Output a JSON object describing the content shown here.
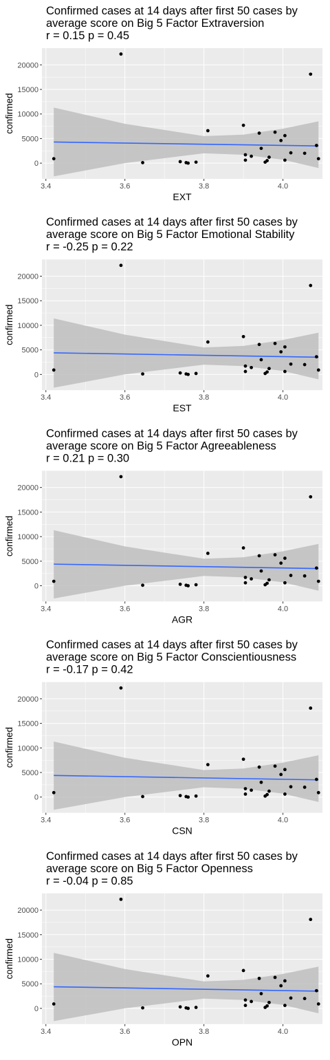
{
  "chart_data": [
    {
      "type": "scatter",
      "title_lines": [
        "Confirmed cases at 14 days after first 50 cases by",
        "average score on Big 5 Factor Extraversion",
        "r = 0.15 p = 0.45"
      ],
      "xlabel": "EXT",
      "ylabel": "confirmed",
      "xlim": [
        3.39,
        4.1
      ],
      "ylim": [
        -3200,
        23400
      ],
      "xticks": [
        3.4,
        3.6,
        3.8,
        4.0
      ],
      "xtick_labels": [
        "3.4",
        "3.6",
        "3.8",
        "4.0"
      ],
      "yticks": [
        0,
        5000,
        10000,
        15000,
        20000
      ],
      "ytick_labels": [
        "0",
        "5000",
        "10000",
        "15000",
        "20000"
      ],
      "grid": true,
      "points": [
        {
          "x": 3.42,
          "y": 900
        },
        {
          "x": 3.59,
          "y": 22200
        },
        {
          "x": 3.645,
          "y": 100
        },
        {
          "x": 3.74,
          "y": 300
        },
        {
          "x": 3.755,
          "y": 100
        },
        {
          "x": 3.76,
          "y": 0
        },
        {
          "x": 3.78,
          "y": 200
        },
        {
          "x": 3.81,
          "y": 6600
        },
        {
          "x": 3.9,
          "y": 7700
        },
        {
          "x": 3.905,
          "y": 1700
        },
        {
          "x": 3.905,
          "y": 600
        },
        {
          "x": 3.92,
          "y": 1400
        },
        {
          "x": 3.94,
          "y": 6100
        },
        {
          "x": 3.945,
          "y": 3000
        },
        {
          "x": 3.955,
          "y": 200
        },
        {
          "x": 3.96,
          "y": 500
        },
        {
          "x": 3.965,
          "y": 1200
        },
        {
          "x": 3.98,
          "y": 6300
        },
        {
          "x": 3.995,
          "y": 4600
        },
        {
          "x": 4.005,
          "y": 5600
        },
        {
          "x": 4.005,
          "y": 600
        },
        {
          "x": 4.02,
          "y": 2100
        },
        {
          "x": 4.055,
          "y": 2000
        },
        {
          "x": 4.07,
          "y": 18100
        },
        {
          "x": 4.085,
          "y": 3600
        },
        {
          "x": 4.09,
          "y": 900
        }
      ],
      "trend": {
        "x": [
          3.42,
          4.09
        ],
        "y": [
          4300,
          3500
        ]
      },
      "band": {
        "x": [
          3.42,
          3.6,
          3.8,
          3.9,
          4.0,
          4.09
        ],
        "upper": [
          11300,
          8000,
          5500,
          5800,
          7000,
          8500
        ],
        "lower": [
          -2700,
          0,
          2000,
          1700,
          700,
          -1000
        ]
      },
      "colors": {
        "trend": "#3366FF",
        "band": "#BEBEBE",
        "panel": "#EBEBEB",
        "points": "#000000"
      }
    },
    {
      "type": "scatter",
      "title_lines": [
        "Confirmed cases at 14 days after first 50 cases by",
        "average score on Big 5 Factor Emotional Stability",
        "r = -0.25 p = 0.22"
      ],
      "xlabel": "EST",
      "ylabel": "confirmed",
      "xlim": [
        3.39,
        4.1
      ],
      "ylim": [
        -3200,
        23400
      ],
      "xticks": [
        3.4,
        3.6,
        3.8,
        4.0
      ],
      "xtick_labels": [
        "3.4",
        "3.6",
        "3.8",
        "4.0"
      ],
      "yticks": [
        0,
        5000,
        10000,
        15000,
        20000
      ],
      "ytick_labels": [
        "0",
        "5000",
        "10000",
        "15000",
        "20000"
      ],
      "grid": true,
      "points": [
        {
          "x": 3.42,
          "y": 900
        },
        {
          "x": 3.59,
          "y": 22200
        },
        {
          "x": 3.645,
          "y": 100
        },
        {
          "x": 3.74,
          "y": 300
        },
        {
          "x": 3.755,
          "y": 100
        },
        {
          "x": 3.76,
          "y": 0
        },
        {
          "x": 3.78,
          "y": 200
        },
        {
          "x": 3.81,
          "y": 6600
        },
        {
          "x": 3.9,
          "y": 7700
        },
        {
          "x": 3.905,
          "y": 1700
        },
        {
          "x": 3.905,
          "y": 600
        },
        {
          "x": 3.92,
          "y": 1400
        },
        {
          "x": 3.94,
          "y": 6100
        },
        {
          "x": 3.945,
          "y": 3000
        },
        {
          "x": 3.955,
          "y": 200
        },
        {
          "x": 3.96,
          "y": 500
        },
        {
          "x": 3.965,
          "y": 1200
        },
        {
          "x": 3.98,
          "y": 6300
        },
        {
          "x": 3.995,
          "y": 4600
        },
        {
          "x": 4.005,
          "y": 5600
        },
        {
          "x": 4.005,
          "y": 600
        },
        {
          "x": 4.02,
          "y": 2100
        },
        {
          "x": 4.055,
          "y": 2000
        },
        {
          "x": 4.07,
          "y": 18100
        },
        {
          "x": 4.085,
          "y": 3600
        },
        {
          "x": 4.09,
          "y": 900
        }
      ],
      "trend": {
        "x": [
          3.42,
          4.09
        ],
        "y": [
          4400,
          3500
        ]
      },
      "band": {
        "x": [
          3.42,
          3.6,
          3.8,
          3.9,
          4.0,
          4.09
        ],
        "upper": [
          11400,
          8100,
          5500,
          5800,
          7000,
          8500
        ],
        "lower": [
          -2700,
          0,
          2000,
          1700,
          700,
          -1000
        ]
      },
      "colors": {
        "trend": "#3366FF",
        "band": "#BEBEBE",
        "panel": "#EBEBEB",
        "points": "#000000"
      }
    },
    {
      "type": "scatter",
      "title_lines": [
        "Confirmed cases at 14 days after first 50 cases by",
        "average score on Big 5 Factor Agreeableness",
        "r = 0.21 p = 0.30"
      ],
      "xlabel": "AGR",
      "ylabel": "confirmed",
      "xlim": [
        3.39,
        4.1
      ],
      "ylim": [
        -3200,
        23400
      ],
      "xticks": [
        3.4,
        3.6,
        3.8,
        4.0
      ],
      "xtick_labels": [
        "3.4",
        "3.6",
        "3.8",
        "4.0"
      ],
      "yticks": [
        0,
        5000,
        10000,
        15000,
        20000
      ],
      "ytick_labels": [
        "0",
        "5000",
        "10000",
        "15000",
        "20000"
      ],
      "grid": true,
      "points": [
        {
          "x": 3.42,
          "y": 900
        },
        {
          "x": 3.59,
          "y": 22200
        },
        {
          "x": 3.645,
          "y": 100
        },
        {
          "x": 3.74,
          "y": 300
        },
        {
          "x": 3.755,
          "y": 100
        },
        {
          "x": 3.76,
          "y": 0
        },
        {
          "x": 3.78,
          "y": 200
        },
        {
          "x": 3.81,
          "y": 6600
        },
        {
          "x": 3.9,
          "y": 7700
        },
        {
          "x": 3.905,
          "y": 1700
        },
        {
          "x": 3.905,
          "y": 600
        },
        {
          "x": 3.92,
          "y": 1400
        },
        {
          "x": 3.94,
          "y": 6100
        },
        {
          "x": 3.945,
          "y": 3000
        },
        {
          "x": 3.955,
          "y": 200
        },
        {
          "x": 3.96,
          "y": 500
        },
        {
          "x": 3.965,
          "y": 1200
        },
        {
          "x": 3.98,
          "y": 6300
        },
        {
          "x": 3.995,
          "y": 4600
        },
        {
          "x": 4.005,
          "y": 5600
        },
        {
          "x": 4.005,
          "y": 600
        },
        {
          "x": 4.02,
          "y": 2100
        },
        {
          "x": 4.055,
          "y": 2000
        },
        {
          "x": 4.07,
          "y": 18100
        },
        {
          "x": 4.085,
          "y": 3600
        },
        {
          "x": 4.09,
          "y": 900
        }
      ],
      "trend": {
        "x": [
          3.42,
          4.09
        ],
        "y": [
          4400,
          3500
        ]
      },
      "band": {
        "x": [
          3.42,
          3.6,
          3.8,
          3.9,
          4.0,
          4.09
        ],
        "upper": [
          11300,
          8000,
          5500,
          5800,
          7000,
          8500
        ],
        "lower": [
          -2600,
          0,
          2000,
          1700,
          700,
          -1000
        ]
      },
      "colors": {
        "trend": "#3366FF",
        "band": "#BEBEBE",
        "panel": "#EBEBEB",
        "points": "#000000"
      }
    },
    {
      "type": "scatter",
      "title_lines": [
        "Confirmed cases at 14 days after first 50 cases by",
        "average score on Big 5 Factor Conscientiousness",
        "r = -0.17 p = 0.42"
      ],
      "xlabel": "CSN",
      "ylabel": "confirmed",
      "xlim": [
        3.39,
        4.1
      ],
      "ylim": [
        -3200,
        23400
      ],
      "xticks": [
        3.4,
        3.6,
        3.8,
        4.0
      ],
      "xtick_labels": [
        "3.4",
        "3.6",
        "3.8",
        "4.0"
      ],
      "yticks": [
        0,
        5000,
        10000,
        15000,
        20000
      ],
      "ytick_labels": [
        "0",
        "5000",
        "10000",
        "15000",
        "20000"
      ],
      "grid": true,
      "points": [
        {
          "x": 3.42,
          "y": 900
        },
        {
          "x": 3.59,
          "y": 22200
        },
        {
          "x": 3.645,
          "y": 100
        },
        {
          "x": 3.74,
          "y": 300
        },
        {
          "x": 3.755,
          "y": 100
        },
        {
          "x": 3.76,
          "y": 0
        },
        {
          "x": 3.78,
          "y": 200
        },
        {
          "x": 3.81,
          "y": 6600
        },
        {
          "x": 3.9,
          "y": 7700
        },
        {
          "x": 3.905,
          "y": 1700
        },
        {
          "x": 3.905,
          "y": 600
        },
        {
          "x": 3.92,
          "y": 1400
        },
        {
          "x": 3.94,
          "y": 6100
        },
        {
          "x": 3.945,
          "y": 3000
        },
        {
          "x": 3.955,
          "y": 200
        },
        {
          "x": 3.96,
          "y": 500
        },
        {
          "x": 3.965,
          "y": 1200
        },
        {
          "x": 3.98,
          "y": 6300
        },
        {
          "x": 3.995,
          "y": 4600
        },
        {
          "x": 4.005,
          "y": 5600
        },
        {
          "x": 4.005,
          "y": 600
        },
        {
          "x": 4.02,
          "y": 2100
        },
        {
          "x": 4.055,
          "y": 2000
        },
        {
          "x": 4.07,
          "y": 18100
        },
        {
          "x": 4.085,
          "y": 3600
        },
        {
          "x": 4.09,
          "y": 900
        }
      ],
      "trend": {
        "x": [
          3.42,
          4.09
        ],
        "y": [
          4400,
          3500
        ]
      },
      "band": {
        "x": [
          3.42,
          3.6,
          3.8,
          3.9,
          4.0,
          4.09
        ],
        "upper": [
          11300,
          8000,
          5500,
          5800,
          7000,
          8500
        ],
        "lower": [
          -2600,
          0,
          2000,
          1700,
          700,
          -1000
        ]
      },
      "colors": {
        "trend": "#3366FF",
        "band": "#BEBEBE",
        "panel": "#EBEBEB",
        "points": "#000000"
      }
    },
    {
      "type": "scatter",
      "title_lines": [
        "Confirmed cases at 14 days after first 50 cases by",
        "average score on Big 5 Factor Openness",
        "r = -0.04 p = 0.85"
      ],
      "xlabel": "OPN",
      "ylabel": "confirmed",
      "xlim": [
        3.39,
        4.1
      ],
      "ylim": [
        -3200,
        23400
      ],
      "xticks": [
        3.4,
        3.6,
        3.8,
        4.0
      ],
      "xtick_labels": [
        "3.4",
        "3.6",
        "3.8",
        "4.0"
      ],
      "yticks": [
        0,
        5000,
        10000,
        15000,
        20000
      ],
      "ytick_labels": [
        "0",
        "5000",
        "10000",
        "15000",
        "20000"
      ],
      "grid": true,
      "points": [
        {
          "x": 3.42,
          "y": 900
        },
        {
          "x": 3.59,
          "y": 22200
        },
        {
          "x": 3.645,
          "y": 100
        },
        {
          "x": 3.74,
          "y": 300
        },
        {
          "x": 3.755,
          "y": 100
        },
        {
          "x": 3.76,
          "y": 0
        },
        {
          "x": 3.78,
          "y": 200
        },
        {
          "x": 3.81,
          "y": 6600
        },
        {
          "x": 3.9,
          "y": 7700
        },
        {
          "x": 3.905,
          "y": 1700
        },
        {
          "x": 3.905,
          "y": 600
        },
        {
          "x": 3.92,
          "y": 1400
        },
        {
          "x": 3.94,
          "y": 6100
        },
        {
          "x": 3.945,
          "y": 3000
        },
        {
          "x": 3.955,
          "y": 200
        },
        {
          "x": 3.96,
          "y": 500
        },
        {
          "x": 3.965,
          "y": 1200
        },
        {
          "x": 3.98,
          "y": 6300
        },
        {
          "x": 3.995,
          "y": 4600
        },
        {
          "x": 4.005,
          "y": 5600
        },
        {
          "x": 4.005,
          "y": 600
        },
        {
          "x": 4.02,
          "y": 2100
        },
        {
          "x": 4.055,
          "y": 2000
        },
        {
          "x": 4.07,
          "y": 18100
        },
        {
          "x": 4.085,
          "y": 3600
        },
        {
          "x": 4.09,
          "y": 900
        }
      ],
      "trend": {
        "x": [
          3.42,
          4.09
        ],
        "y": [
          4400,
          3500
        ]
      },
      "band": {
        "x": [
          3.42,
          3.6,
          3.8,
          3.9,
          4.0,
          4.09
        ],
        "upper": [
          11300,
          8000,
          5500,
          5800,
          7000,
          8500
        ],
        "lower": [
          -2600,
          0,
          2000,
          1700,
          700,
          -1000
        ]
      },
      "colors": {
        "trend": "#3366FF",
        "band": "#BEBEBE",
        "panel": "#EBEBEB",
        "points": "#000000"
      }
    }
  ]
}
